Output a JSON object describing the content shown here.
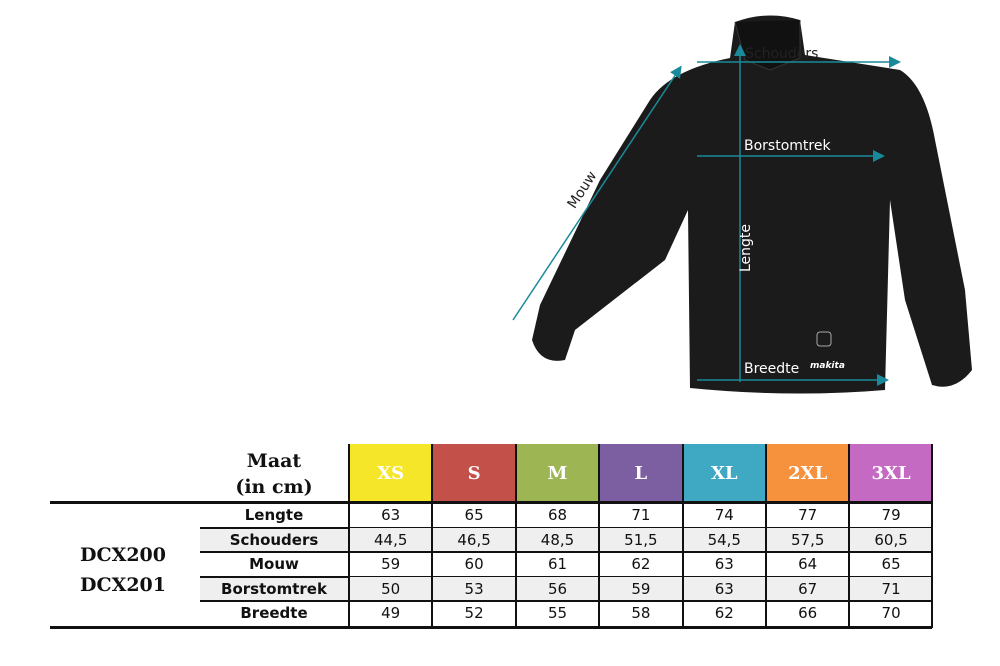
{
  "diagram": {
    "labels": {
      "shoulders": "Schouders",
      "chest": "Borstomtrek",
      "sleeve": "Mouw",
      "length": "Lengte",
      "width": "Breedte"
    },
    "brand_logo_text": "makita",
    "arrow_color": "#1a8a9a"
  },
  "table": {
    "header_line1": "Maat",
    "header_line2": "(in cm)",
    "models": [
      "DCX200",
      "DCX201"
    ],
    "sizes": [
      {
        "label": "XS",
        "color": "#f5e62a"
      },
      {
        "label": "S",
        "color": "#c4504a"
      },
      {
        "label": "M",
        "color": "#9db553"
      },
      {
        "label": "L",
        "color": "#7b5fa1"
      },
      {
        "label": "XL",
        "color": "#3fa9c3"
      },
      {
        "label": "2XL",
        "color": "#f6913e"
      },
      {
        "label": "3XL",
        "color": "#c46ac2"
      }
    ],
    "rows": [
      {
        "label": "Lengte",
        "values": [
          "63",
          "65",
          "68",
          "71",
          "74",
          "77",
          "79"
        ]
      },
      {
        "label": "Schouders",
        "values": [
          "44,5",
          "46,5",
          "48,5",
          "51,5",
          "54,5",
          "57,5",
          "60,5"
        ]
      },
      {
        "label": "Mouw",
        "values": [
          "59",
          "60",
          "61",
          "62",
          "63",
          "64",
          "65"
        ]
      },
      {
        "label": "Borstomtrek",
        "values": [
          "50",
          "53",
          "56",
          "59",
          "63",
          "67",
          "71"
        ]
      },
      {
        "label": "Breedte",
        "values": [
          "49",
          "52",
          "55",
          "58",
          "62",
          "66",
          "70"
        ]
      }
    ]
  }
}
